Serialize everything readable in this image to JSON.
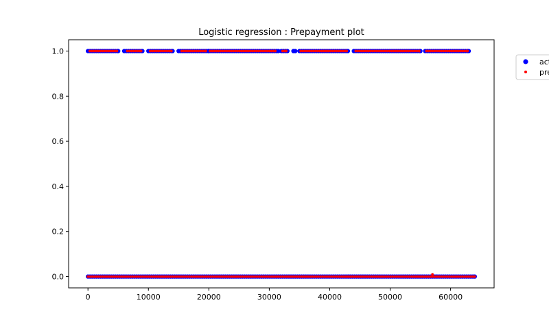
{
  "chart_data": {
    "type": "scatter",
    "title": "Logistic regression : Prepayment plot",
    "xlabel": "",
    "ylabel": "",
    "xlim": [
      -3200,
      67200
    ],
    "ylim": [
      -0.05,
      1.05
    ],
    "xticks": [
      0,
      10000,
      20000,
      30000,
      40000,
      50000,
      60000
    ],
    "xtick_labels": [
      "0",
      "10000",
      "20000",
      "30000",
      "40000",
      "50000",
      "60000"
    ],
    "yticks": [
      0.0,
      0.2,
      0.4,
      0.6,
      0.8,
      1.0
    ],
    "ytick_labels": [
      "0.0",
      "0.2",
      "0.4",
      "0.6",
      "0.8",
      "1.0"
    ],
    "grid": false,
    "legend_position": "upper-right, outside plot area (clipped)",
    "series": [
      {
        "name": "act",
        "marker": "circle",
        "color": "#0000ff",
        "points_at_0": [
          [
            0,
            64000
          ]
        ],
        "points_at_1": [
          [
            0,
            5000
          ],
          [
            6000,
            9000
          ],
          [
            10000,
            14000
          ],
          [
            15000,
            20000
          ],
          [
            20000,
            31500
          ],
          [
            32000,
            33000
          ],
          [
            34000,
            34300
          ],
          [
            35000,
            43000
          ],
          [
            44000,
            55000
          ],
          [
            55800,
            63000
          ]
        ]
      },
      {
        "name": "pre",
        "marker": "point",
        "color": "#ff0000",
        "points_at_0": [
          [
            0,
            64000
          ]
        ],
        "points_at_1": [
          [
            300,
            4800
          ],
          [
            6500,
            8800
          ],
          [
            10300,
            13800
          ],
          [
            15500,
            19500
          ],
          [
            20200,
            31000
          ],
          [
            32200,
            32800
          ],
          [
            35200,
            42800
          ],
          [
            44300,
            54800
          ],
          [
            56000,
            62800
          ]
        ],
        "outliers": [
          [
            57000,
            0.01
          ]
        ]
      }
    ]
  }
}
